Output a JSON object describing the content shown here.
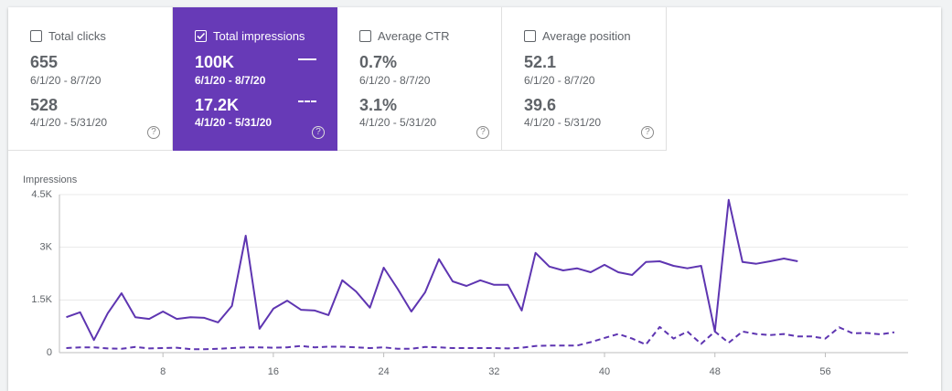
{
  "cards": [
    {
      "title": "Total clicks",
      "checked": false,
      "value1": "655",
      "range1": "6/1/20 - 8/7/20",
      "value2": "528",
      "range2": "4/1/20 - 5/31/20"
    },
    {
      "title": "Total impressions",
      "checked": true,
      "value1": "100K",
      "range1": "6/1/20 - 8/7/20",
      "value2": "17.2K",
      "range2": "4/1/20 - 5/31/20"
    },
    {
      "title": "Average CTR",
      "checked": false,
      "value1": "0.7%",
      "range1": "6/1/20 - 8/7/20",
      "value2": "3.1%",
      "range2": "4/1/20 - 5/31/20"
    },
    {
      "title": "Average position",
      "checked": false,
      "value1": "52.1",
      "range1": "6/1/20 - 8/7/20",
      "value2": "39.6",
      "range2": "4/1/20 - 5/31/20"
    }
  ],
  "chart_data": {
    "type": "line",
    "y_label": "Impressions",
    "x": [
      1,
      2,
      3,
      4,
      5,
      6,
      7,
      8,
      9,
      10,
      11,
      12,
      13,
      14,
      15,
      16,
      17,
      18,
      19,
      20,
      21,
      22,
      23,
      24,
      25,
      26,
      27,
      28,
      29,
      30,
      31,
      32,
      33,
      34,
      35,
      36,
      37,
      38,
      39,
      40,
      41,
      42,
      43,
      44,
      45,
      46,
      47,
      48,
      49,
      50,
      51,
      52,
      53,
      54,
      55,
      56,
      57,
      58,
      59,
      60,
      61
    ],
    "series": [
      {
        "color": "#5e35b1",
        "dashed": false,
        "values": [
          1010,
          1150,
          360,
          1120,
          1690,
          1010,
          960,
          1170,
          960,
          1010,
          990,
          860,
          1330,
          3330,
          680,
          1250,
          1480,
          1220,
          1200,
          1070,
          2060,
          1740,
          1280,
          2420,
          1820,
          1170,
          1720,
          2660,
          2030,
          1900,
          2060,
          1930,
          1930,
          1200,
          2840,
          2450,
          2340,
          2400,
          2290,
          2500,
          2290,
          2210,
          2580,
          2600,
          2470,
          2400,
          2470,
          600,
          4350,
          2580,
          2530,
          2600,
          2680,
          2600,
          null,
          null,
          null,
          null,
          null,
          null,
          null
        ]
      },
      {
        "color": "#5e35b1",
        "dashed": true,
        "values": [
          130,
          150,
          150,
          120,
          110,
          160,
          120,
          130,
          140,
          100,
          100,
          110,
          130,
          150,
          150,
          140,
          150,
          190,
          150,
          170,
          170,
          150,
          130,
          150,
          110,
          110,
          160,
          150,
          130,
          130,
          130,
          130,
          120,
          140,
          190,
          200,
          200,
          200,
          300,
          420,
          530,
          400,
          230,
          730,
          400,
          600,
          250,
          600,
          280,
          600,
          530,
          500,
          530,
          460,
          460,
          400,
          720,
          550,
          560,
          520,
          580
        ]
      }
    ],
    "xlim": [
      0.5,
      62
    ],
    "xticks": [
      8,
      16,
      24,
      32,
      40,
      48,
      56
    ],
    "ylim": [
      0,
      4500
    ],
    "yticks": [
      0,
      {
        "value": 1500,
        "label": "1.5K"
      },
      {
        "value": 3000,
        "label": "3K"
      },
      {
        "value": 4500,
        "label": "4.5K"
      }
    ],
    "grid": true
  }
}
